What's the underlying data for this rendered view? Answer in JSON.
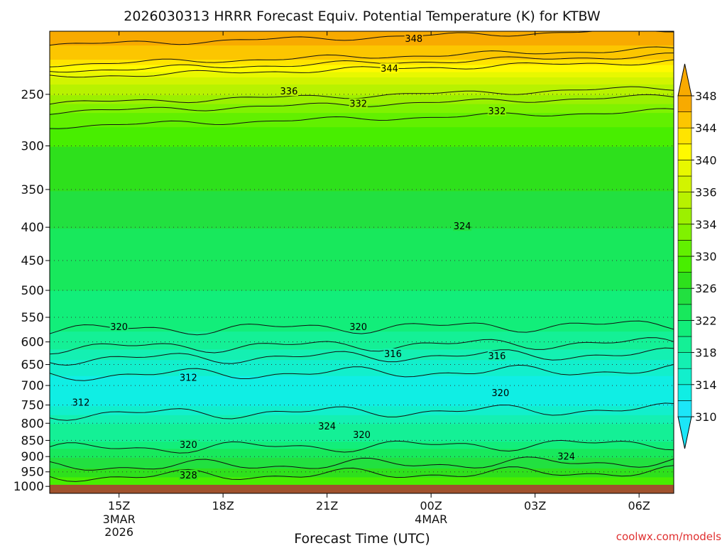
{
  "chart_data": {
    "type": "heatmap",
    "title": "2026030313 HRRR Forecast Equiv. Potential Temperature (K) for KTBW",
    "xlabel": "Forecast Time (UTC)",
    "ylabel": "",
    "x_ticks": [
      {
        "label": "15Z",
        "sub": [
          "3MAR",
          "2026"
        ],
        "hour": 15
      },
      {
        "label": "18Z",
        "sub": [],
        "hour": 18
      },
      {
        "label": "21Z",
        "sub": [],
        "hour": 21
      },
      {
        "label": "00Z",
        "sub": [
          "4MAR"
        ],
        "hour": 24
      },
      {
        "label": "03Z",
        "sub": [],
        "hour": 27
      },
      {
        "label": "06Z",
        "sub": [],
        "hour": 30
      }
    ],
    "xlim": [
      13,
      31
    ],
    "y_scale": "log",
    "ylim": [
      1025,
      200
    ],
    "y_ticks": [
      250,
      300,
      350,
      400,
      450,
      500,
      550,
      600,
      650,
      700,
      750,
      800,
      850,
      900,
      950,
      1000
    ],
    "colorbar": {
      "levels": [
        310,
        312,
        314,
        316,
        318,
        320,
        322,
        324,
        326,
        328,
        330,
        332,
        334,
        336,
        338,
        340,
        342,
        344,
        346,
        348,
        350
      ],
      "tick_labels": [
        "310",
        "314",
        "318",
        "322",
        "326",
        "330",
        "334",
        "336",
        "340",
        "344",
        "348"
      ],
      "colors": [
        "#1ce6f8",
        "#10eee4",
        "#12efcc",
        "#14f0b2",
        "#14f096",
        "#12ee7a",
        "#18e85c",
        "#22e040",
        "#2ee01c",
        "#48ee00",
        "#62f000",
        "#80f200",
        "#9cf000",
        "#b8f200",
        "#d2f400",
        "#e8f800",
        "#fffa00",
        "#ffe400",
        "#fcc600",
        "#f8aa00"
      ],
      "extend": "both"
    },
    "profile": [
      {
        "p": 200,
        "theta_e": 350
      },
      {
        "p": 220,
        "theta_e": 346
      },
      {
        "p": 240,
        "theta_e": 338
      },
      {
        "p": 250,
        "theta_e": 336
      },
      {
        "p": 270,
        "theta_e": 331
      },
      {
        "p": 300,
        "theta_e": 328
      },
      {
        "p": 350,
        "theta_e": 326
      },
      {
        "p": 400,
        "theta_e": 324
      },
      {
        "p": 450,
        "theta_e": 323
      },
      {
        "p": 500,
        "theta_e": 322
      },
      {
        "p": 550,
        "theta_e": 321
      },
      {
        "p": 600,
        "theta_e": 319
      },
      {
        "p": 650,
        "theta_e": 315
      },
      {
        "p": 700,
        "theta_e": 313
      },
      {
        "p": 750,
        "theta_e": 314
      },
      {
        "p": 800,
        "theta_e": 318
      },
      {
        "p": 850,
        "theta_e": 320
      },
      {
        "p": 900,
        "theta_e": 324
      },
      {
        "p": 950,
        "theta_e": 327
      },
      {
        "p": 1000,
        "theta_e": 330
      },
      {
        "p": 1025,
        "theta_e": 331
      }
    ],
    "contour_labels": [
      {
        "text": "348",
        "hour": 23.5,
        "p": 205
      },
      {
        "text": "344",
        "hour": 22.8,
        "p": 228
      },
      {
        "text": "336",
        "hour": 19.9,
        "p": 247
      },
      {
        "text": "332",
        "hour": 21.9,
        "p": 258
      },
      {
        "text": "332",
        "hour": 25.9,
        "p": 265
      },
      {
        "text": "324",
        "hour": 24.9,
        "p": 398
      },
      {
        "text": "320",
        "hour": 15.0,
        "p": 568
      },
      {
        "text": "320",
        "hour": 21.9,
        "p": 568
      },
      {
        "text": "316",
        "hour": 22.9,
        "p": 625
      },
      {
        "text": "316",
        "hour": 25.9,
        "p": 630
      },
      {
        "text": "312",
        "hour": 17.0,
        "p": 680
      },
      {
        "text": "312",
        "hour": 13.9,
        "p": 742
      },
      {
        "text": "320",
        "hour": 26.0,
        "p": 718
      },
      {
        "text": "324",
        "hour": 21.0,
        "p": 808
      },
      {
        "text": "320",
        "hour": 22.0,
        "p": 832
      },
      {
        "text": "320",
        "hour": 17.0,
        "p": 862
      },
      {
        "text": "324",
        "hour": 27.9,
        "p": 898
      },
      {
        "text": "328",
        "hour": 17.0,
        "p": 960
      }
    ]
  },
  "watermark": "coolwx.com/models"
}
